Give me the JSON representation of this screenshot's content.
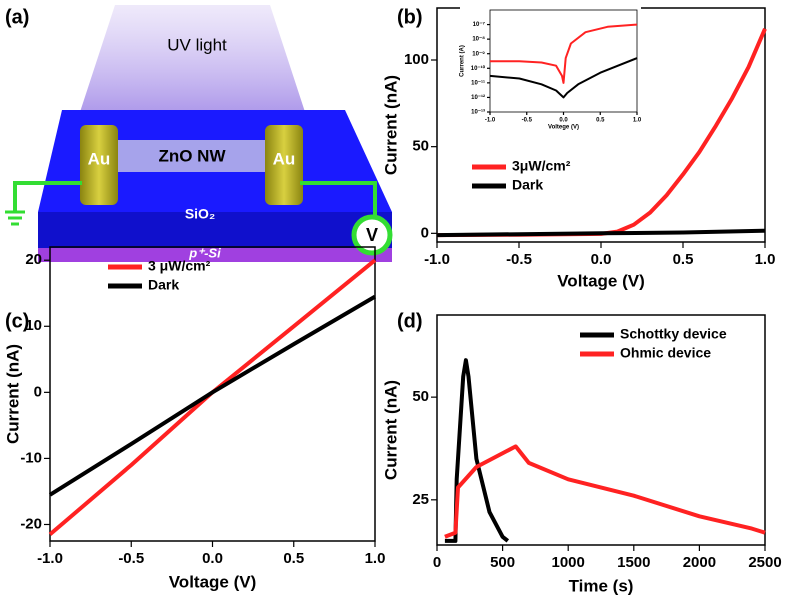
{
  "diagram": {
    "panel_label": "(a)",
    "beam": "UV light",
    "left_contact": "Au",
    "right_contact": "Au",
    "wire": "ZnO NW",
    "layer": "SiO₂",
    "substrate": "p⁺-Si",
    "meter": "V"
  },
  "chart_data": [
    {
      "type": "line",
      "panel_label": "(b)",
      "xlabel": "Voltage (V)",
      "ylabel": "Current (nA)",
      "xlim": [
        -1,
        1
      ],
      "ylim": [
        -5,
        130
      ],
      "xticks": [
        {
          "value": -1,
          "label": "-1.0"
        },
        -0.5,
        {
          "value": 0,
          "label": "0.0"
        },
        0.5,
        {
          "value": 1,
          "label": "1.0"
        }
      ],
      "yticks": [
        0,
        50,
        100
      ],
      "legend": "lower left",
      "series": [
        {
          "name": "3μW/cm²",
          "color": "#ff2222",
          "x": [
            -1,
            -0.5,
            0,
            0.1,
            0.2,
            0.3,
            0.4,
            0.5,
            0.6,
            0.7,
            0.8,
            0.9,
            1
          ],
          "values": [
            -1,
            -0.8,
            -0.3,
            1,
            5,
            12,
            22,
            34,
            47,
            62,
            78,
            96,
            118
          ]
        },
        {
          "name": "Dark",
          "color": "#000000",
          "x": [
            -1,
            -0.5,
            0,
            0.5,
            1
          ],
          "values": [
            -1,
            -0.5,
            0,
            0.5,
            1.5
          ]
        }
      ]
    },
    {
      "type": "line",
      "xlabel": "Voltege (V)",
      "ylabel": "Current (A)",
      "log_scale_y": true,
      "xlim": [
        -1,
        1
      ],
      "ylim": [
        1e-13,
        1e-06
      ],
      "xticks": [
        {
          "value": -1,
          "label": "-1.0"
        },
        -0.5,
        {
          "value": 0,
          "label": "0.0"
        },
        0.5,
        {
          "value": 1,
          "label": "1.0"
        }
      ],
      "yticks": [
        {
          "value": 1e-07,
          "label": "10⁻⁷"
        },
        {
          "value": 1e-08,
          "label": "10⁻⁸"
        },
        {
          "value": 1e-09,
          "label": "10⁻⁹"
        },
        {
          "value": 1e-10,
          "label": "10⁻¹⁰"
        },
        {
          "value": 1e-11,
          "label": "10⁻¹¹"
        },
        {
          "value": 1e-12,
          "label": "10⁻¹²"
        },
        {
          "value": 1e-13,
          "label": "10⁻¹³"
        }
      ],
      "series": [
        {
          "color": "#ff2222",
          "x": [
            -1,
            -0.6,
            -0.3,
            -0.1,
            -0.02,
            0,
            0.03,
            0.1,
            0.3,
            0.6,
            1
          ],
          "values": [
            3e-10,
            3e-10,
            2.5e-10,
            1.5e-10,
            3e-11,
            1e-11,
            5e-10,
            5e-09,
            3e-08,
            7e-08,
            1e-07
          ]
        },
        {
          "color": "#000000",
          "x": [
            -1,
            -0.6,
            -0.3,
            -0.1,
            0,
            0.05,
            0.2,
            0.5,
            1
          ],
          "values": [
            3e-11,
            2e-11,
            8e-12,
            3e-12,
            1e-12,
            2e-12,
            8e-12,
            5e-11,
            5e-10
          ]
        }
      ]
    },
    {
      "type": "line",
      "panel_label": "(c)",
      "xlabel": "Voltage (V)",
      "ylabel": "Current (nA)",
      "xlim": [
        -1,
        1
      ],
      "ylim": [
        -22.5,
        22
      ],
      "xticks": [
        {
          "value": -1,
          "label": "-1.0"
        },
        -0.5,
        {
          "value": 0,
          "label": "0.0"
        },
        0.5,
        {
          "value": 1,
          "label": "1.0"
        }
      ],
      "yticks": [
        -20,
        -10,
        0,
        10,
        20
      ],
      "legend": "upper left",
      "series": [
        {
          "name": "3 μW/cm²",
          "color": "#ff2222",
          "x": [
            -1,
            -0.5,
            0,
            0.5,
            1
          ],
          "values": [
            -21.5,
            -11,
            0,
            10,
            20
          ]
        },
        {
          "name": "Dark",
          "color": "#000000",
          "x": [
            -1,
            -0.5,
            0,
            0.5,
            1
          ],
          "values": [
            -15.5,
            -7.8,
            0,
            7.3,
            14.5
          ]
        }
      ]
    },
    {
      "type": "line",
      "panel_label": "(d)",
      "xlabel": "Time (s)",
      "ylabel": "Current (nA)",
      "xlim": [
        0,
        2500
      ],
      "ylim": [
        14,
        70
      ],
      "xticks": [
        0,
        500,
        1000,
        1500,
        2000,
        2500
      ],
      "yticks": [
        25,
        50
      ],
      "legend": "upper right",
      "series": [
        {
          "name": "Schottky device",
          "color": "#000000",
          "x": [
            60,
            140,
            150,
            200,
            220,
            240,
            300,
            400,
            500,
            540
          ],
          "values": [
            15,
            15,
            30,
            55,
            59,
            55,
            35,
            22,
            16,
            15
          ]
        },
        {
          "name": "Ohmic device",
          "color": "#ff2222",
          "x": [
            60,
            140,
            160,
            300,
            600,
            700,
            1000,
            1500,
            2000,
            2400,
            2500
          ],
          "values": [
            16,
            17,
            28,
            33,
            38,
            34,
            30,
            26,
            21,
            18,
            17
          ]
        }
      ]
    }
  ]
}
